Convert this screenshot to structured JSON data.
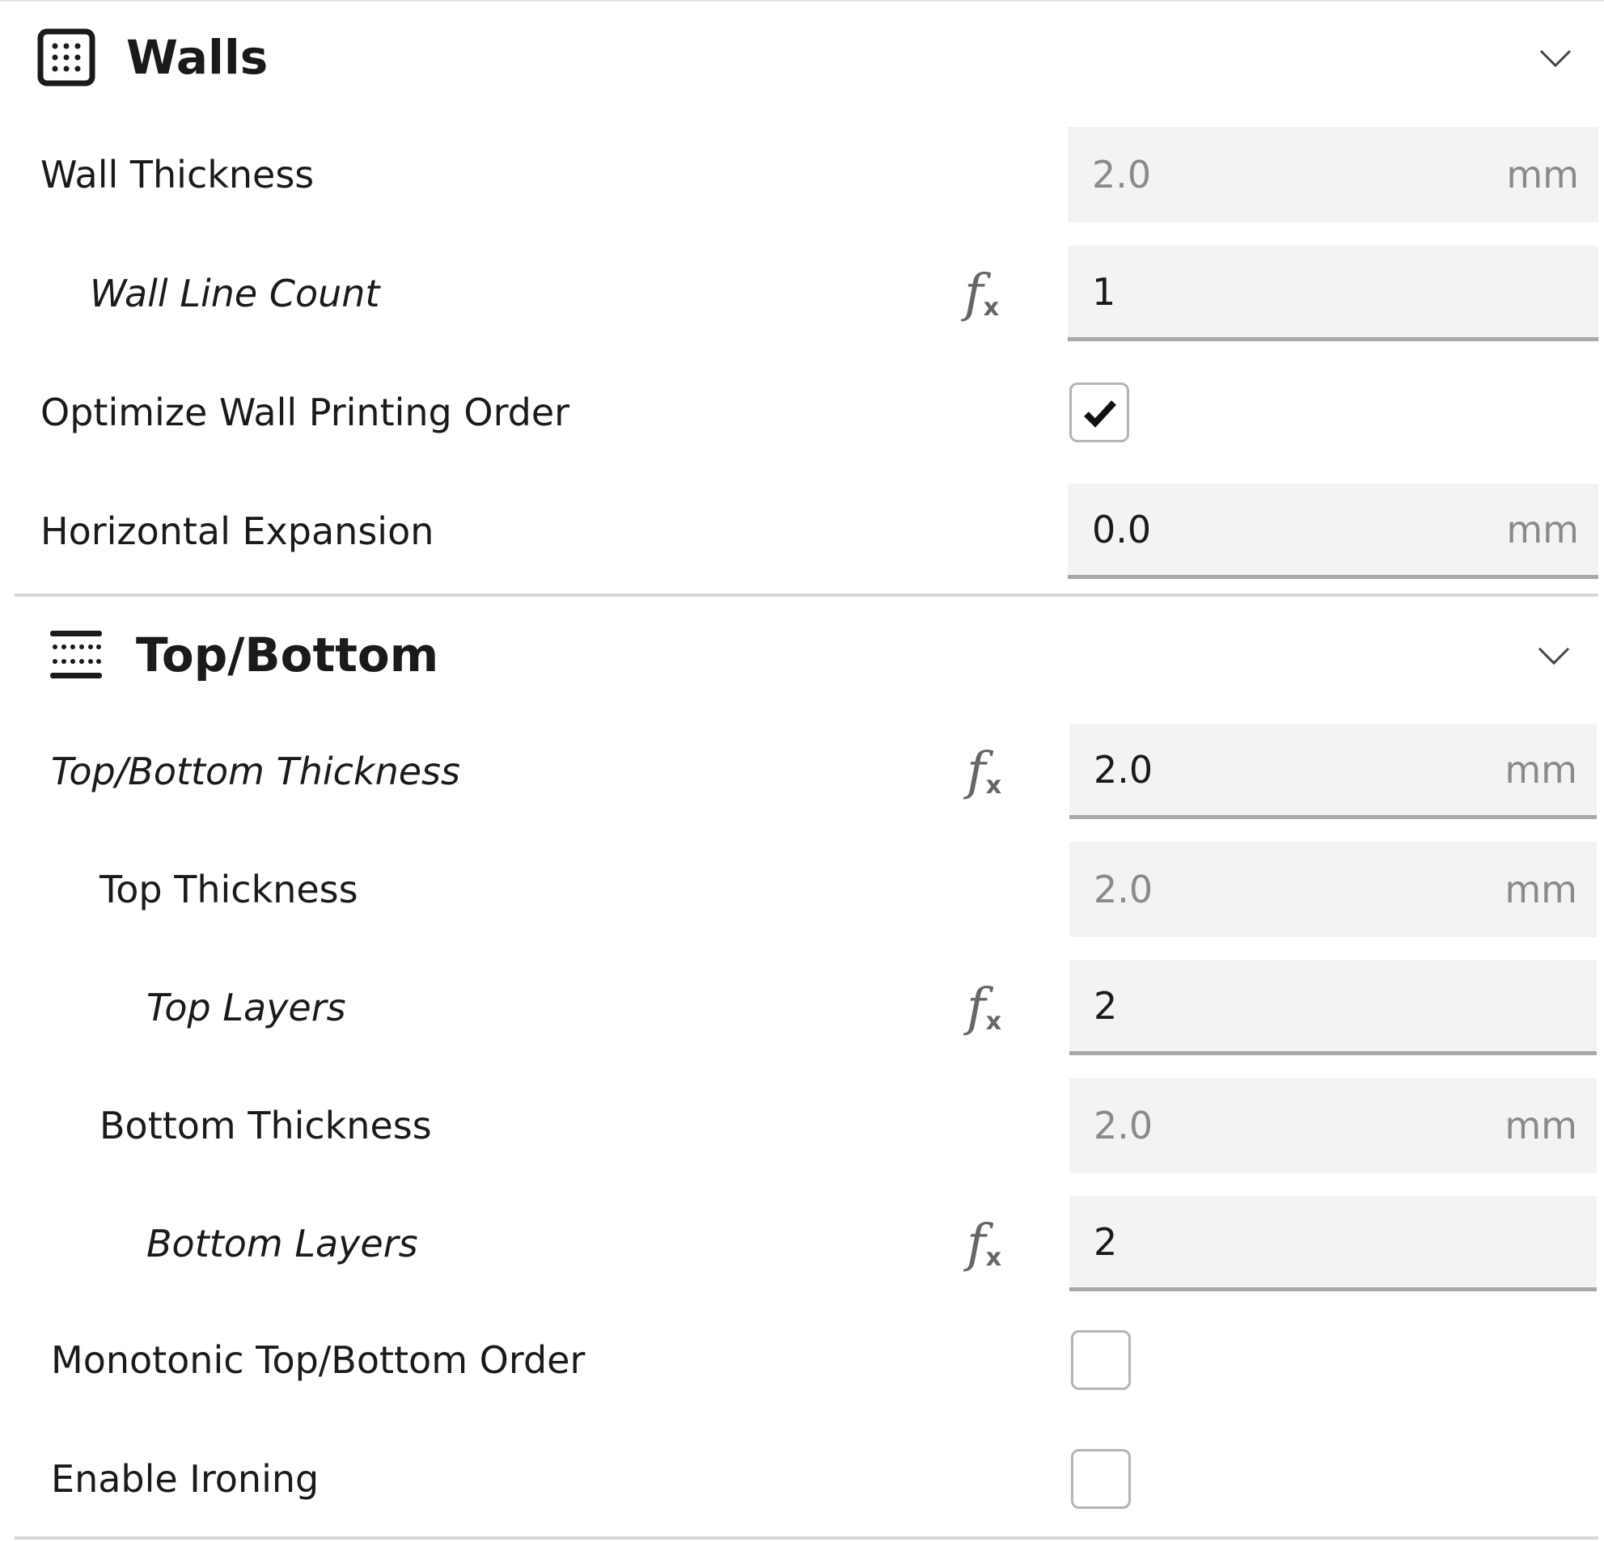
{
  "sections": [
    {
      "title": "Walls",
      "icon": "walls-grid-icon",
      "settings": [
        {
          "label": "Wall Thickness",
          "type": "number",
          "value": "2.0",
          "unit": "mm",
          "state": "disabled"
        },
        {
          "label": "Wall Line Count",
          "type": "number",
          "value": "1",
          "unit": "",
          "state": "overridden-formula"
        },
        {
          "label": "Optimize Wall Printing Order",
          "type": "checkbox",
          "checked": true
        },
        {
          "label": "Horizontal Expansion",
          "type": "number",
          "value": "0.0",
          "unit": "mm",
          "state": "editable"
        }
      ]
    },
    {
      "title": "Top/Bottom",
      "icon": "top-bottom-layers-icon",
      "settings": [
        {
          "label": "Top/Bottom Thickness",
          "type": "number",
          "value": "2.0",
          "unit": "mm",
          "state": "overridden-formula"
        },
        {
          "label": "Top Thickness",
          "type": "number",
          "value": "2.0",
          "unit": "mm",
          "state": "disabled"
        },
        {
          "label": "Top Layers",
          "type": "number",
          "value": "2",
          "unit": "",
          "state": "overridden-formula"
        },
        {
          "label": "Bottom Thickness",
          "type": "number",
          "value": "2.0",
          "unit": "mm",
          "state": "disabled"
        },
        {
          "label": "Bottom Layers",
          "type": "number",
          "value": "2",
          "unit": "",
          "state": "overridden-formula"
        },
        {
          "label": "Monotonic Top/Bottom Order",
          "type": "checkbox",
          "checked": false
        },
        {
          "label": "Enable Ironing",
          "type": "checkbox",
          "checked": false
        }
      ]
    }
  ],
  "formula_icon": "fx-icon",
  "colors": {
    "field_bg": "#f3f3f3",
    "disabled_text": "#8a8a8a",
    "underline": "#a9a9a9"
  }
}
